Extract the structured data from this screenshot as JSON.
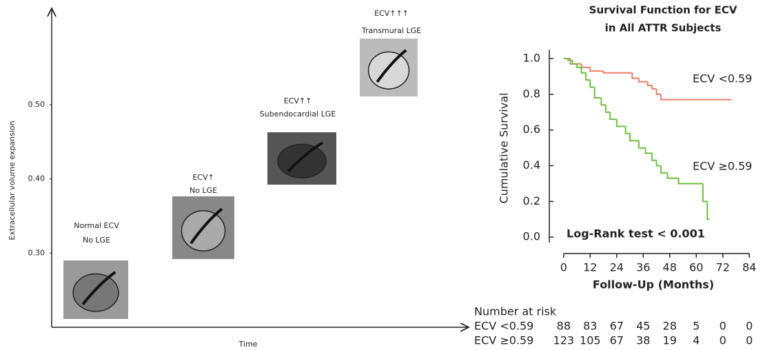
{
  "chart_data": [
    {
      "type": "stages",
      "ylabel": "Extracellular volume expansion",
      "xlabel": "Time",
      "ylim": [
        0.2,
        0.63
      ],
      "yticks": [
        {
          "value": 0.3,
          "label": "0.30"
        },
        {
          "value": 0.4,
          "label": "0.40"
        },
        {
          "value": 0.5,
          "label": "0.50"
        }
      ],
      "stages": [
        {
          "lines": [
            "Normal ECV",
            "No LGE"
          ]
        },
        {
          "lines": [
            "ECV↑",
            "No LGE"
          ]
        },
        {
          "lines": [
            "ECV↑↑",
            "Subendocardial LGE"
          ]
        },
        {
          "lines": [
            "ECV↑↑↑",
            "Transmural LGE"
          ]
        }
      ]
    },
    {
      "type": "survival",
      "title": [
        "Survival Function for ECV",
        "in All ATTR Subjects"
      ],
      "xlabel": "Follow-Up (Months)",
      "ylabel": "Cumulative Survival",
      "annotation": "Log-Rank test < 0.001",
      "xlim": [
        -4,
        88
      ],
      "ylim": [
        -0.03,
        1.05
      ],
      "xticks": [
        0,
        12,
        24,
        36,
        48,
        60,
        72,
        84
      ],
      "yticks": [
        {
          "value": 0,
          "label": "0.0"
        },
        {
          "value": 0.2,
          "label": "0.2"
        },
        {
          "value": 0.4,
          "label": "0.4"
        },
        {
          "value": 0.6,
          "label": "0.6"
        },
        {
          "value": 0.8,
          "label": "0.8"
        },
        {
          "value": 1,
          "label": "1.0"
        }
      ],
      "series": [
        {
          "name": "ECV <0.59",
          "color": "#f07a68",
          "x": [
            0,
            3,
            8,
            12,
            18,
            31,
            34,
            38,
            40,
            42,
            44,
            76
          ],
          "values": [
            1.0,
            0.97,
            0.95,
            0.93,
            0.92,
            0.89,
            0.87,
            0.85,
            0.83,
            0.8,
            0.77,
            0.77
          ]
        },
        {
          "name": "ECV ≥0.59",
          "color": "#6cbf3c",
          "x": [
            0,
            2,
            4,
            6,
            8,
            10,
            12,
            14,
            17,
            19,
            21,
            24,
            28,
            30,
            34,
            37,
            40,
            42,
            44,
            47,
            52,
            63,
            65,
            66
          ],
          "values": [
            1.0,
            0.99,
            0.97,
            0.95,
            0.92,
            0.88,
            0.84,
            0.78,
            0.74,
            0.7,
            0.66,
            0.62,
            0.58,
            0.54,
            0.5,
            0.47,
            0.43,
            0.4,
            0.36,
            0.33,
            0.3,
            0.2,
            0.1,
            0.1
          ]
        }
      ],
      "risk_table": {
        "title": "Number at risk",
        "rows": [
          {
            "name": "ECV <0.59",
            "values": [
              88,
              83,
              67,
              45,
              28,
              5,
              0,
              0
            ]
          },
          {
            "name": "ECV ≥0.59",
            "values": [
              123,
              105,
              67,
              38,
              19,
              4,
              0,
              0
            ]
          }
        ]
      }
    }
  ]
}
